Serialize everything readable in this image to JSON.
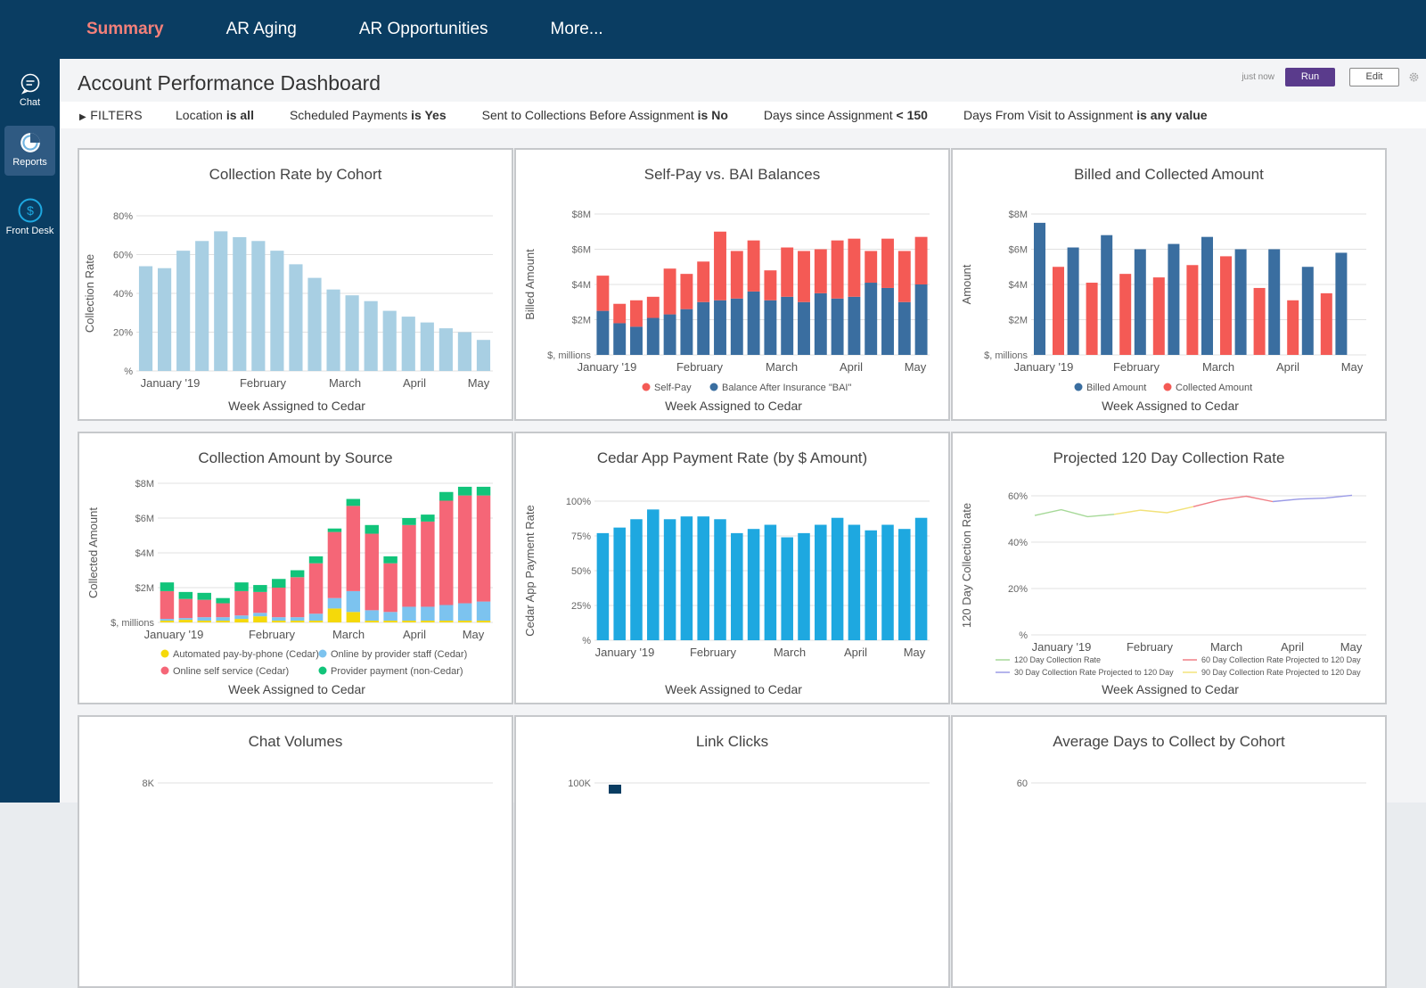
{
  "nav": {
    "tabs": [
      {
        "label": "Summary"
      },
      {
        "label": "AR Aging"
      },
      {
        "label": "AR Opportunities"
      },
      {
        "label": "More..."
      }
    ]
  },
  "sidebar": {
    "items": [
      {
        "label": "Chat",
        "icon": "chat-icon"
      },
      {
        "label": "Reports",
        "icon": "reports-icon"
      },
      {
        "label": "Front Desk",
        "icon": "dollar-icon"
      }
    ]
  },
  "header": {
    "title": "Account Performance Dashboard",
    "timestamp": "just now",
    "run_label": "Run",
    "edit_label": "Edit"
  },
  "filters": {
    "toggle_label": "FILTERS",
    "items": [
      {
        "name": "Location",
        "op": "is all"
      },
      {
        "name": "Scheduled Payments",
        "op": "is Yes"
      },
      {
        "name": "Sent to Collections Before Assignment",
        "op": "is No"
      },
      {
        "name": "Days since Assignment",
        "op": "< 150"
      },
      {
        "name": "Days From Visit to Assignment",
        "op": "is any value"
      }
    ]
  },
  "colors": {
    "nav_bg": "#0a3d62",
    "active_tab": "#f4807a",
    "run_button": "#5a3b8c",
    "light_blue": "#a8cfe3",
    "navy": "#3a6ea0",
    "coral": "#f45a55",
    "cyan": "#1ea8e0",
    "yellow": "#f5d90a",
    "sky": "#7cc3ef",
    "pink": "#f56677",
    "green": "#11c47a"
  },
  "chart_data": [
    {
      "id": "collection-rate",
      "type": "bar",
      "title": "Collection Rate by Cohort",
      "xlabel": "Week Assigned to Cedar",
      "ylabel": "Collection Rate",
      "yticks": [
        "%",
        "20%",
        "40%",
        "60%",
        "80%"
      ],
      "ylim": [
        0,
        80
      ],
      "month_labels": [
        "January '19",
        "February",
        "March",
        "April",
        "May"
      ],
      "values": [
        54,
        53,
        62,
        67,
        72,
        69,
        67,
        62,
        55,
        48,
        42,
        39,
        36,
        31,
        28,
        25,
        22,
        20,
        16
      ],
      "legend": []
    },
    {
      "id": "self-pay-bai",
      "type": "bar",
      "stacked": true,
      "title": "Self-Pay vs. BAI Balances",
      "xlabel": "Week Assigned to Cedar",
      "ylabel": "Billed Amount",
      "yticks": [
        "$, millions",
        "$2M",
        "$4M",
        "$6M",
        "$8M"
      ],
      "ylim": [
        0,
        8
      ],
      "month_labels": [
        "January '19",
        "February",
        "March",
        "April",
        "May"
      ],
      "series": [
        {
          "name": "Balance After Insurance \"BAI\"",
          "values": [
            2.5,
            1.8,
            1.6,
            2.1,
            2.3,
            2.6,
            3.0,
            3.1,
            3.2,
            3.6,
            3.1,
            3.3,
            3.0,
            3.5,
            3.2,
            3.3,
            4.1,
            3.8,
            3.0,
            4.0
          ]
        },
        {
          "name": "Self-Pay",
          "values": [
            2.0,
            1.1,
            1.5,
            1.2,
            2.6,
            2.0,
            2.3,
            3.9,
            2.7,
            2.9,
            1.7,
            2.8,
            2.9,
            2.5,
            3.3,
            3.3,
            1.8,
            2.8,
            2.9,
            2.7
          ]
        }
      ],
      "legend": [
        "Self-Pay",
        "Balance After Insurance \"BAI\""
      ]
    },
    {
      "id": "billed-collected",
      "type": "bar",
      "grouped": true,
      "title": "Billed and Collected Amount",
      "xlabel": "Week Assigned to Cedar",
      "ylabel": "Amount",
      "yticks": [
        "$, millions",
        "$2M",
        "$4M",
        "$6M",
        "$8M"
      ],
      "ylim": [
        0,
        8
      ],
      "month_labels": [
        "January '19",
        "February",
        "March",
        "April",
        "May"
      ],
      "series": [
        {
          "name": "Billed Amount",
          "values": [
            7.5,
            6.1,
            6.8,
            6.0,
            6.3,
            6.7,
            6.0,
            6.0,
            5.0,
            5.8
          ]
        },
        {
          "name": "Collected Amount",
          "values": [
            5.0,
            4.1,
            4.6,
            4.4,
            5.1,
            5.6,
            3.8,
            3.1,
            3.5,
            0
          ]
        }
      ],
      "legend": [
        "Billed Amount",
        "Collected Amount"
      ]
    },
    {
      "id": "collection-by-source",
      "type": "bar",
      "stacked": true,
      "title": "Collection Amount by Source",
      "xlabel": "Week Assigned to Cedar",
      "ylabel": "Collected Amount",
      "yticks": [
        "$, millions",
        "$2M",
        "$4M",
        "$6M",
        "$8M"
      ],
      "ylim": [
        0,
        8
      ],
      "month_labels": [
        "January '19",
        "February",
        "March",
        "April",
        "May"
      ],
      "series": [
        {
          "name": "Automated pay-by-phone (Cedar)",
          "values": [
            0.1,
            0.15,
            0.1,
            0.1,
            0.2,
            0.35,
            0.1,
            0.1,
            0.1,
            0.8,
            0.6,
            0.1,
            0.1,
            0.1,
            0.1,
            0.1,
            0.1,
            0.1
          ]
        },
        {
          "name": "Online by provider staff (Cedar)",
          "values": [
            0.1,
            0.1,
            0.2,
            0.2,
            0.2,
            0.2,
            0.2,
            0.2,
            0.4,
            0.6,
            1.2,
            0.6,
            0.5,
            0.8,
            0.8,
            0.9,
            1.0,
            1.1
          ]
        },
        {
          "name": "Online self service (Cedar)",
          "values": [
            1.6,
            1.1,
            1.0,
            0.8,
            1.4,
            1.2,
            1.7,
            2.3,
            2.9,
            3.8,
            4.9,
            4.4,
            2.8,
            4.7,
            4.9,
            6.0,
            6.2,
            6.1
          ]
        },
        {
          "name": "Provider payment (non-Cedar)",
          "values": [
            0.5,
            0.4,
            0.4,
            0.3,
            0.5,
            0.4,
            0.5,
            0.4,
            0.4,
            0.2,
            0.4,
            0.5,
            0.4,
            0.4,
            0.4,
            0.5,
            0.5,
            0.5
          ]
        }
      ],
      "legend": [
        "Automated pay-by-phone (Cedar)",
        "Online by provider staff (Cedar)",
        "Online self service (Cedar)",
        "Provider payment (non-Cedar)"
      ]
    },
    {
      "id": "app-payment-rate",
      "type": "bar",
      "title": "Cedar App Payment Rate (by $ Amount)",
      "xlabel": "Week Assigned to Cedar",
      "ylabel": "Cedar App Payment Rate",
      "yticks": [
        "%",
        "25%",
        "50%",
        "75%",
        "100%"
      ],
      "ylim": [
        0,
        100
      ],
      "month_labels": [
        "January '19",
        "February",
        "March",
        "April",
        "May"
      ],
      "values": [
        77,
        81,
        87,
        94,
        87,
        89,
        89,
        87,
        77,
        80,
        83,
        74,
        77,
        83,
        88,
        83,
        79,
        83,
        80,
        88
      ],
      "legend": []
    },
    {
      "id": "projected-120",
      "type": "line",
      "title": "Projected 120 Day Collection Rate",
      "xlabel": "Week Assigned to Cedar",
      "ylabel": "120 Day Collection Rate",
      "yticks": [
        "%",
        "20%",
        "40%",
        "60%"
      ],
      "ylim": [
        0,
        60
      ],
      "month_labels": [
        "January '19",
        "February",
        "March",
        "April",
        "May"
      ],
      "series": [
        {
          "name": "120 Day Collection Rate",
          "x": [
            0,
            1,
            2,
            3
          ],
          "values": [
            51.5,
            54,
            51,
            52
          ]
        },
        {
          "name": "90 Day Collection Rate Projected to 120 Day",
          "x": [
            3,
            4,
            5,
            6
          ],
          "values": [
            52,
            53.8,
            52.7,
            55.3
          ]
        },
        {
          "name": "60 Day Collection Rate Projected to 120 Day",
          "x": [
            6,
            7,
            8,
            9
          ],
          "values": [
            55.3,
            58.2,
            59.8,
            57.5
          ]
        },
        {
          "name": "30 Day Collection Rate Projected to 120 Day",
          "x": [
            9,
            10,
            11,
            12
          ],
          "values": [
            57.5,
            58.6,
            59,
            60.2
          ]
        }
      ],
      "legend": [
        "120 Day Collection Rate",
        "60 Day Collection Rate Projected to 120 Day",
        "30 Day Collection Rate Projected to 120 Day",
        "90 Day Collection Rate Projected to 120 Day"
      ]
    },
    {
      "id": "chat-volumes",
      "type": "bar",
      "title": "Chat Volumes",
      "yticks": [
        "8K"
      ],
      "values": []
    },
    {
      "id": "link-clicks",
      "type": "bar",
      "title": "Link Clicks",
      "yticks": [
        "100K"
      ],
      "values": []
    },
    {
      "id": "avg-days",
      "type": "bar",
      "title": "Average Days to Collect by Cohort",
      "yticks": [
        "60"
      ],
      "values": []
    }
  ]
}
